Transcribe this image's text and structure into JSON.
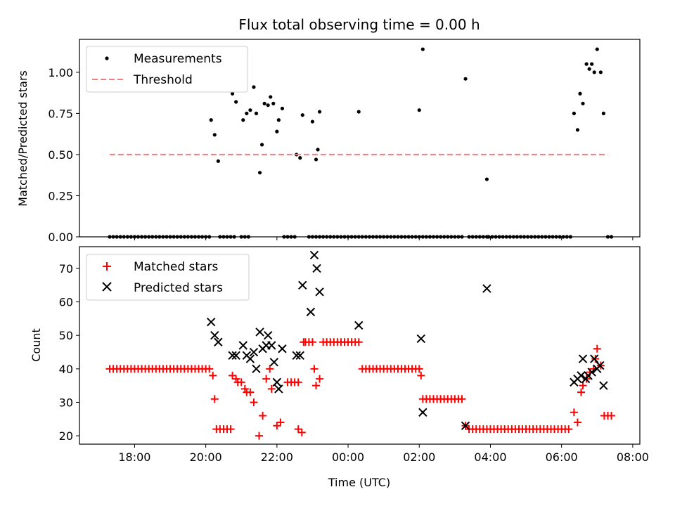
{
  "title": "Flux total observing time = 0.00 h",
  "chart_data": [
    {
      "type": "scatter",
      "ylabel": "Matched/Predicted stars",
      "xlim": [
        16.45,
        32.2
      ],
      "ylim": [
        0,
        1.2
      ],
      "xticks": [
        18,
        20,
        22,
        24,
        26,
        28,
        30,
        32
      ],
      "yticks": [
        0,
        0.25,
        0.5,
        0.75,
        1.0
      ],
      "ytick_labels": [
        "0.00",
        "0.25",
        "0.50",
        "0.75",
        "1.00"
      ],
      "grid": false,
      "legend": "upper-left",
      "series": [
        {
          "name": "Measurements",
          "marker": "dot",
          "color": "#000000",
          "zero_runs": [
            [
              17.3,
              20.1,
              0.1
            ],
            [
              20.4,
              20.8,
              0.1
            ],
            [
              21.0,
              21.2,
              0.1
            ],
            [
              22.2,
              22.5,
              0.1
            ],
            [
              22.9,
              23.2,
              0.1
            ],
            [
              23.3,
              24.2,
              0.1
            ],
            [
              24.3,
              26.0,
              0.1
            ],
            [
              26.1,
              27.2,
              0.1
            ],
            [
              27.4,
              27.9,
              0.1
            ],
            [
              27.95,
              30.3,
              0.1
            ],
            [
              31.3,
              31.4,
              0.1
            ]
          ],
          "points": [
            [
              20.15,
              0.71
            ],
            [
              20.25,
              0.62
            ],
            [
              20.35,
              0.46
            ],
            [
              20.75,
              0.87
            ],
            [
              20.85,
              0.82
            ],
            [
              21.05,
              0.71
            ],
            [
              21.15,
              0.75
            ],
            [
              21.25,
              0.77
            ],
            [
              21.35,
              0.91
            ],
            [
              21.42,
              0.75
            ],
            [
              21.52,
              0.39
            ],
            [
              21.58,
              0.56
            ],
            [
              21.65,
              0.81
            ],
            [
              21.75,
              0.8
            ],
            [
              21.82,
              0.85
            ],
            [
              21.9,
              0.81
            ],
            [
              22.0,
              0.64
            ],
            [
              22.05,
              0.71
            ],
            [
              22.15,
              0.78
            ],
            [
              22.55,
              0.5
            ],
            [
              22.65,
              0.48
            ],
            [
              22.72,
              0.74
            ],
            [
              23.0,
              0.7
            ],
            [
              23.1,
              0.47
            ],
            [
              23.15,
              0.53
            ],
            [
              23.2,
              0.76
            ],
            [
              24.3,
              0.76
            ],
            [
              26.0,
              0.77
            ],
            [
              26.1,
              1.14
            ],
            [
              27.3,
              0.96
            ],
            [
              27.9,
              0.35
            ],
            [
              30.35,
              0.75
            ],
            [
              30.45,
              0.65
            ],
            [
              30.52,
              0.87
            ],
            [
              30.6,
              0.81
            ],
            [
              30.7,
              1.05
            ],
            [
              30.78,
              1.02
            ],
            [
              30.85,
              1.05
            ],
            [
              30.92,
              1.0
            ],
            [
              31.0,
              1.14
            ],
            [
              31.1,
              1.0
            ],
            [
              31.18,
              0.75
            ]
          ]
        },
        {
          "name": "Threshold",
          "style": "dashed-line",
          "color": "#f08080",
          "x": [
            17.3,
            31.3
          ],
          "y": [
            0.5,
            0.5
          ]
        }
      ]
    },
    {
      "type": "scatter",
      "xlabel": "Time (UTC)",
      "ylabel": "Count",
      "xlim": [
        16.45,
        32.2
      ],
      "ylim": [
        17.5,
        76.5
      ],
      "xticks": [
        18,
        20,
        22,
        24,
        26,
        28,
        30,
        32
      ],
      "xtick_labels": [
        "18:00",
        "20:00",
        "22:00",
        "00:00",
        "02:00",
        "04:00",
        "06:00",
        "08:00"
      ],
      "yticks": [
        20,
        30,
        40,
        50,
        60,
        70
      ],
      "grid": false,
      "legend": "upper-left",
      "series": [
        {
          "name": "Matched stars",
          "marker": "plus",
          "color": "#ff0000",
          "runs": [
            [
              17.3,
              20.0,
              40,
              0.1
            ],
            [
              20.3,
              20.7,
              22,
              0.1
            ],
            [
              22.3,
              22.6,
              36,
              0.1
            ],
            [
              22.8,
              23.0,
              48,
              0.1
            ],
            [
              23.3,
              24.3,
              48,
              0.1
            ],
            [
              24.4,
              26.0,
              40,
              0.1
            ],
            [
              26.1,
              27.2,
              31,
              0.1
            ],
            [
              27.4,
              30.2,
              22,
              0.1
            ],
            [
              31.2,
              31.4,
              26,
              0.1
            ]
          ],
          "points": [
            [
              20.1,
              40
            ],
            [
              20.2,
              38
            ],
            [
              20.25,
              31
            ],
            [
              20.75,
              38
            ],
            [
              20.85,
              37
            ],
            [
              20.9,
              36
            ],
            [
              21.0,
              36
            ],
            [
              21.1,
              34
            ],
            [
              21.15,
              33
            ],
            [
              21.25,
              33
            ],
            [
              21.35,
              30
            ],
            [
              21.5,
              20
            ],
            [
              21.6,
              26
            ],
            [
              21.7,
              37
            ],
            [
              21.8,
              40
            ],
            [
              21.85,
              34
            ],
            [
              22.0,
              23
            ],
            [
              22.1,
              24
            ],
            [
              22.6,
              22
            ],
            [
              22.7,
              21
            ],
            [
              22.75,
              48
            ],
            [
              23.05,
              40
            ],
            [
              23.1,
              35
            ],
            [
              23.2,
              37
            ],
            [
              26.05,
              38
            ],
            [
              27.3,
              23
            ],
            [
              30.35,
              27
            ],
            [
              30.45,
              24
            ],
            [
              30.55,
              33
            ],
            [
              30.6,
              35
            ],
            [
              30.7,
              37
            ],
            [
              30.8,
              39
            ],
            [
              30.9,
              40
            ],
            [
              30.95,
              43
            ],
            [
              31.0,
              46
            ],
            [
              31.1,
              41
            ]
          ]
        },
        {
          "name": "Predicted stars",
          "marker": "x",
          "color": "#000000",
          "points": [
            [
              20.15,
              54
            ],
            [
              20.25,
              50
            ],
            [
              20.35,
              48
            ],
            [
              20.75,
              44
            ],
            [
              20.85,
              44
            ],
            [
              21.05,
              47
            ],
            [
              21.15,
              44
            ],
            [
              21.25,
              43
            ],
            [
              21.35,
              45
            ],
            [
              21.42,
              40
            ],
            [
              21.52,
              51
            ],
            [
              21.6,
              46
            ],
            [
              21.7,
              47
            ],
            [
              21.75,
              50
            ],
            [
              21.85,
              47
            ],
            [
              21.92,
              42
            ],
            [
              22.0,
              36
            ],
            [
              22.05,
              34
            ],
            [
              22.15,
              46
            ],
            [
              22.55,
              44
            ],
            [
              22.65,
              44
            ],
            [
              22.72,
              65
            ],
            [
              22.95,
              57
            ],
            [
              23.05,
              74
            ],
            [
              23.12,
              70
            ],
            [
              23.2,
              63
            ],
            [
              24.3,
              53
            ],
            [
              26.05,
              49
            ],
            [
              26.1,
              27
            ],
            [
              27.3,
              23
            ],
            [
              27.9,
              64
            ],
            [
              30.35,
              36
            ],
            [
              30.45,
              37
            ],
            [
              30.55,
              38
            ],
            [
              30.6,
              43
            ],
            [
              30.68,
              37
            ],
            [
              30.75,
              38
            ],
            [
              30.85,
              39
            ],
            [
              30.92,
              43
            ],
            [
              31.0,
              40
            ],
            [
              31.08,
              41
            ],
            [
              31.18,
              35
            ]
          ]
        }
      ]
    }
  ]
}
